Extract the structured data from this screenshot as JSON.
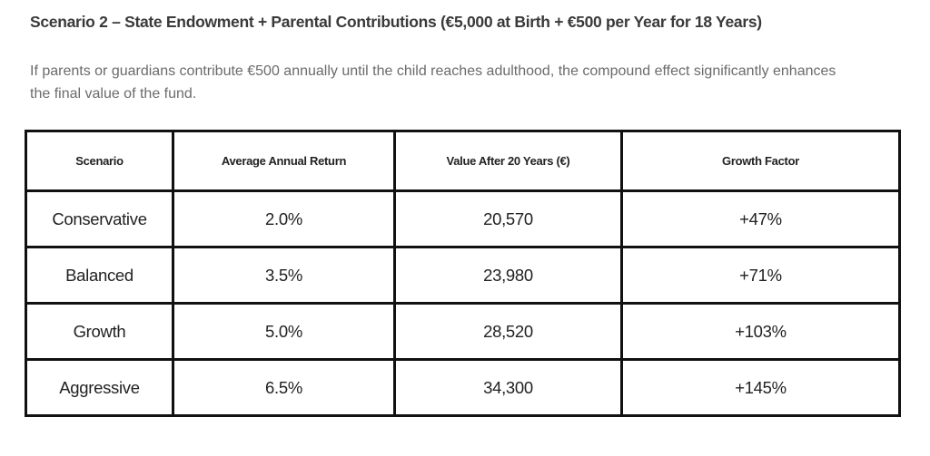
{
  "heading": "Scenario 2 – State Endowment + Parental Contributions (€5,000 at Birth + €500 per Year for 18 Years)",
  "paragraph": {
    "lines": [
      "If parents or guardians contribute €500 annually until the child reaches adulthood, the compound effect significantly enhances",
      "the final value of the fund."
    ]
  },
  "table": {
    "headers": [
      "Scenario",
      "Average Annual Return",
      "Value After 20 Years (€)",
      "Growth Factor"
    ],
    "rows": [
      [
        "Conservative",
        "2.0%",
        "20,570",
        "+47%"
      ],
      [
        "Balanced",
        "3.5%",
        "23,980",
        "+71%"
      ],
      [
        "Growth",
        "5.0%",
        "28,520",
        "+103%"
      ],
      [
        "Aggressive",
        "6.5%",
        "34,300",
        "+145%"
      ]
    ]
  }
}
